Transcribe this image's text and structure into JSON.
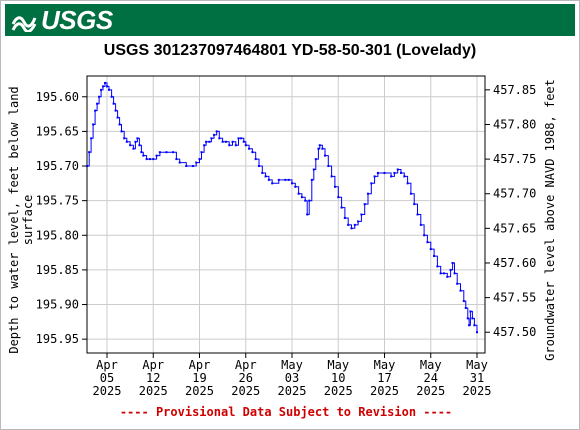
{
  "header": {
    "logo_text": "USGS",
    "logo_icon": "usgs-wave-icon",
    "brand_color": "#006f41"
  },
  "chart_data": {
    "type": "line",
    "title": "USGS 301237097464801 YD-58-50-301 (Lovelady)",
    "ylabel_left": [
      "Depth to water level, feet below land",
      "surface"
    ],
    "ylabel_right": "Groundwater level above NAVD 1988, feet",
    "footer_note": "---- Provisional Data Subject to Revision ----",
    "line_color": "#0000ff",
    "grid": true,
    "xlim_days": [
      0,
      59
    ],
    "ylim_left": [
      195.57,
      195.97
    ],
    "y_left_inverted": true,
    "ylim_right": [
      457.87,
      457.47
    ],
    "x_ticks": [
      {
        "day": 3,
        "label": [
          "Apr",
          "05",
          "2025"
        ]
      },
      {
        "day": 10,
        "label": [
          "Apr",
          "12",
          "2025"
        ]
      },
      {
        "day": 17,
        "label": [
          "Apr",
          "19",
          "2025"
        ]
      },
      {
        "day": 24,
        "label": [
          "Apr",
          "26",
          "2025"
        ]
      },
      {
        "day": 31,
        "label": [
          "May",
          "03",
          "2025"
        ]
      },
      {
        "day": 38,
        "label": [
          "May",
          "10",
          "2025"
        ]
      },
      {
        "day": 45,
        "label": [
          "May",
          "17",
          "2025"
        ]
      },
      {
        "day": 52,
        "label": [
          "May",
          "24",
          "2025"
        ]
      },
      {
        "day": 59,
        "label": [
          "May",
          "31",
          "2025"
        ]
      }
    ],
    "y_left_ticks": [
      195.6,
      195.65,
      195.7,
      195.75,
      195.8,
      195.85,
      195.9,
      195.95
    ],
    "y_left_tick_labels": [
      "195.60",
      "195.65",
      "195.70",
      "195.75",
      "195.80",
      "195.85",
      "195.90",
      "195.95"
    ],
    "y_right_ticks": [
      457.85,
      457.8,
      457.75,
      457.7,
      457.65,
      457.6,
      457.55,
      457.5
    ],
    "y_right_tick_labels": [
      "457.85",
      "457.80",
      "457.75",
      "457.70",
      "457.65",
      "457.60",
      "457.55",
      "457.50"
    ],
    "series": [
      {
        "values": [
          [
            0.0,
            195.7
          ],
          [
            0.3,
            195.68
          ],
          [
            0.6,
            195.66
          ],
          [
            0.9,
            195.64
          ],
          [
            1.2,
            195.62
          ],
          [
            1.5,
            195.61
          ],
          [
            1.8,
            195.6
          ],
          [
            2.1,
            195.59
          ],
          [
            2.4,
            195.585
          ],
          [
            2.7,
            195.58
          ],
          [
            3.0,
            195.585
          ],
          [
            3.3,
            195.59
          ],
          [
            3.7,
            195.6
          ],
          [
            4.0,
            195.61
          ],
          [
            4.3,
            195.62
          ],
          [
            4.6,
            195.63
          ],
          [
            4.9,
            195.64
          ],
          [
            5.2,
            195.65
          ],
          [
            5.6,
            195.66
          ],
          [
            6.0,
            195.665
          ],
          [
            6.5,
            195.67
          ],
          [
            7.0,
            195.675
          ],
          [
            7.3,
            195.665
          ],
          [
            7.6,
            195.66
          ],
          [
            7.9,
            195.67
          ],
          [
            8.2,
            195.68
          ],
          [
            8.5,
            195.685
          ],
          [
            9.0,
            195.69
          ],
          [
            9.5,
            195.69
          ],
          [
            10.0,
            195.69
          ],
          [
            10.5,
            195.685
          ],
          [
            11.0,
            195.68
          ],
          [
            12.0,
            195.68
          ],
          [
            13.0,
            195.68
          ],
          [
            13.5,
            195.69
          ],
          [
            14.0,
            195.695
          ],
          [
            15.0,
            195.7
          ],
          [
            16.0,
            195.7
          ],
          [
            16.5,
            195.695
          ],
          [
            17.0,
            195.69
          ],
          [
            17.3,
            195.68
          ],
          [
            17.7,
            195.67
          ],
          [
            18.0,
            195.665
          ],
          [
            18.5,
            195.665
          ],
          [
            18.8,
            195.66
          ],
          [
            19.2,
            195.655
          ],
          [
            19.6,
            195.65
          ],
          [
            20.0,
            195.66
          ],
          [
            20.5,
            195.665
          ],
          [
            21.0,
            195.665
          ],
          [
            21.5,
            195.67
          ],
          [
            22.0,
            195.665
          ],
          [
            22.5,
            195.67
          ],
          [
            22.9,
            195.66
          ],
          [
            23.3,
            195.66
          ],
          [
            23.7,
            195.665
          ],
          [
            24.0,
            195.67
          ],
          [
            24.5,
            195.675
          ],
          [
            25.0,
            195.68
          ],
          [
            25.5,
            195.69
          ],
          [
            26.0,
            195.7
          ],
          [
            26.5,
            195.71
          ],
          [
            27.0,
            195.715
          ],
          [
            27.5,
            195.72
          ],
          [
            28.0,
            195.725
          ],
          [
            29.0,
            195.72
          ],
          [
            30.0,
            195.72
          ],
          [
            30.5,
            195.72
          ],
          [
            31.0,
            195.725
          ],
          [
            31.5,
            195.73
          ],
          [
            32.0,
            195.74
          ],
          [
            32.5,
            195.745
          ],
          [
            33.0,
            195.75
          ],
          [
            33.3,
            195.77
          ],
          [
            33.6,
            195.75
          ],
          [
            34.0,
            195.72
          ],
          [
            34.3,
            195.705
          ],
          [
            34.6,
            195.69
          ],
          [
            35.0,
            195.675
          ],
          [
            35.2,
            195.67
          ],
          [
            35.6,
            195.675
          ],
          [
            36.0,
            195.685
          ],
          [
            36.5,
            195.7
          ],
          [
            37.0,
            195.715
          ],
          [
            37.5,
            195.73
          ],
          [
            38.0,
            195.745
          ],
          [
            38.5,
            195.76
          ],
          [
            39.0,
            195.775
          ],
          [
            39.5,
            195.785
          ],
          [
            40.0,
            195.79
          ],
          [
            40.5,
            195.785
          ],
          [
            41.0,
            195.78
          ],
          [
            41.5,
            195.77
          ],
          [
            42.0,
            195.755
          ],
          [
            42.5,
            195.74
          ],
          [
            43.0,
            195.725
          ],
          [
            43.5,
            195.715
          ],
          [
            44.0,
            195.71
          ],
          [
            45.0,
            195.71
          ],
          [
            46.0,
            195.715
          ],
          [
            46.5,
            195.71
          ],
          [
            47.0,
            195.705
          ],
          [
            47.5,
            195.71
          ],
          [
            48.0,
            195.715
          ],
          [
            48.5,
            195.725
          ],
          [
            49.0,
            195.74
          ],
          [
            49.5,
            195.755
          ],
          [
            50.0,
            195.77
          ],
          [
            50.5,
            195.785
          ],
          [
            51.0,
            195.8
          ],
          [
            51.5,
            195.81
          ],
          [
            52.0,
            195.82
          ],
          [
            52.5,
            195.83
          ],
          [
            53.0,
            195.845
          ],
          [
            53.5,
            195.855
          ],
          [
            54.0,
            195.855
          ],
          [
            54.5,
            195.86
          ],
          [
            55.0,
            195.85
          ],
          [
            55.3,
            195.84
          ],
          [
            55.6,
            195.855
          ],
          [
            56.0,
            195.87
          ],
          [
            56.5,
            195.88
          ],
          [
            57.0,
            195.895
          ],
          [
            57.3,
            195.905
          ],
          [
            57.6,
            195.92
          ],
          [
            57.8,
            195.93
          ],
          [
            58.0,
            195.91
          ],
          [
            58.3,
            195.92
          ],
          [
            58.6,
            195.93
          ],
          [
            59.0,
            195.94
          ]
        ]
      }
    ]
  }
}
